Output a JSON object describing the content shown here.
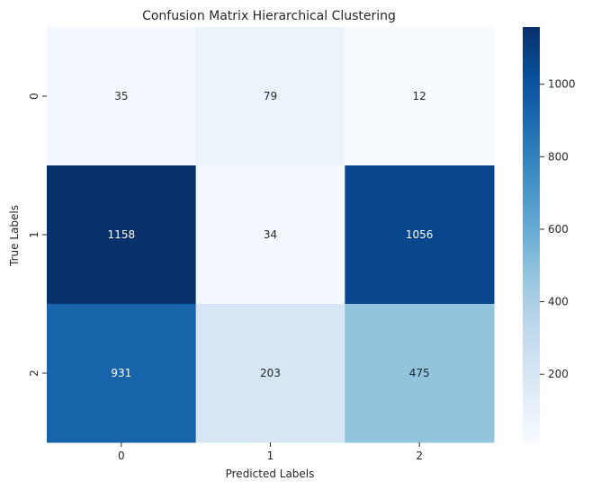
{
  "chart_data": {
    "type": "heatmap",
    "title": "Confusion Matrix Hierarchical Clustering",
    "xlabel": "Predicted Labels",
    "ylabel": "True Labels",
    "x_categories": [
      "0",
      "1",
      "2"
    ],
    "y_categories": [
      "0",
      "1",
      "2"
    ],
    "values": [
      [
        35,
        79,
        12
      ],
      [
        1158,
        34,
        1056
      ],
      [
        931,
        203,
        475
      ]
    ],
    "colormap": "Blues",
    "colormap_stops": [
      "#f7fbff",
      "#deebf7",
      "#c6dbef",
      "#9ecae1",
      "#6baed6",
      "#4292c6",
      "#2171b5",
      "#08519c",
      "#08306b"
    ],
    "value_range": [
      12,
      1158
    ],
    "colorbar_ticks": [
      "200",
      "400",
      "600",
      "800",
      "1000"
    ],
    "annotation_colors": {
      "light_bg": "#262626",
      "dark_bg": "#ffffff"
    }
  }
}
